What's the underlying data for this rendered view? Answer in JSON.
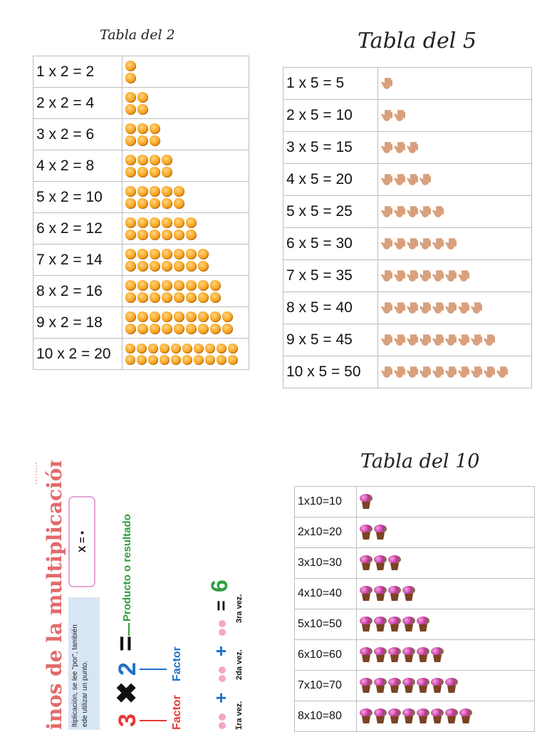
{
  "tabla2": {
    "title": "Tabla del 2",
    "icon": "cheese-puff-icon",
    "rows": [
      {
        "eq": "1 x 2 = 2",
        "count": 2
      },
      {
        "eq": "2 x 2 = 4",
        "count": 4
      },
      {
        "eq": "3 x 2 = 6",
        "count": 6
      },
      {
        "eq": "4 x 2 = 8",
        "count": 8
      },
      {
        "eq": "5 x 2 = 10",
        "count": 10
      },
      {
        "eq": "6 x 2 = 12",
        "count": 12
      },
      {
        "eq": "7 x 2 = 14",
        "count": 14
      },
      {
        "eq": "8 x 2 = 16",
        "count": 16
      },
      {
        "eq": "9 x 2 = 18",
        "count": 18
      },
      {
        "eq": "10 x 2 = 20",
        "count": 20
      }
    ]
  },
  "tabla5": {
    "title": "Tabla del 5",
    "icon": "hand-icon",
    "rows": [
      {
        "eq": "1 x 5 = 5",
        "count": 1
      },
      {
        "eq": "2 x 5 = 10",
        "count": 2
      },
      {
        "eq": "3 x 5 = 15",
        "count": 3
      },
      {
        "eq": "4 x 5 = 20",
        "count": 4
      },
      {
        "eq": "5 x 5 = 25",
        "count": 5
      },
      {
        "eq": "6 x 5 = 30",
        "count": 6
      },
      {
        "eq": "7 x 5 = 35",
        "count": 7
      },
      {
        "eq": "8 x 5 = 40",
        "count": 8
      },
      {
        "eq": "9 x 5 = 45",
        "count": 9
      },
      {
        "eq": "10 x 5 = 50",
        "count": 10
      }
    ]
  },
  "tabla10": {
    "title": "Tabla del 10",
    "icon": "flower-pot-icon",
    "rows": [
      {
        "eq": "1x10=10",
        "count": 1
      },
      {
        "eq": "2x10=20",
        "count": 2
      },
      {
        "eq": "3x10=30",
        "count": 3
      },
      {
        "eq": "4x10=40",
        "count": 4
      },
      {
        "eq": "5x10=50",
        "count": 5
      },
      {
        "eq": "6x10=60",
        "count": 6
      },
      {
        "eq": "7x10=70",
        "count": 7
      },
      {
        "eq": "8x10=80",
        "count": 8
      }
    ]
  },
  "info": {
    "title": "inos de la multiplicación",
    "note_line1": "ltiplicación, se lee \"por\", también",
    "note_line2": "ede utilizar un punto.",
    "symbols": "X = •",
    "num_a": "3",
    "times": "✖",
    "num_b": "2",
    "equals": "=",
    "product_label": "Producto o resultado",
    "factor_a": "Factor",
    "factor_b": "Factor",
    "plus": "+",
    "result": "6",
    "vez1": "1ra vez.",
    "vez2": "2da vez.",
    "vez3": "3ra vez."
  },
  "colors": {
    "title_pink": "#e26a6a",
    "red": "#e53935",
    "blue": "#1e6fc8",
    "green": "#2e9e3f"
  }
}
